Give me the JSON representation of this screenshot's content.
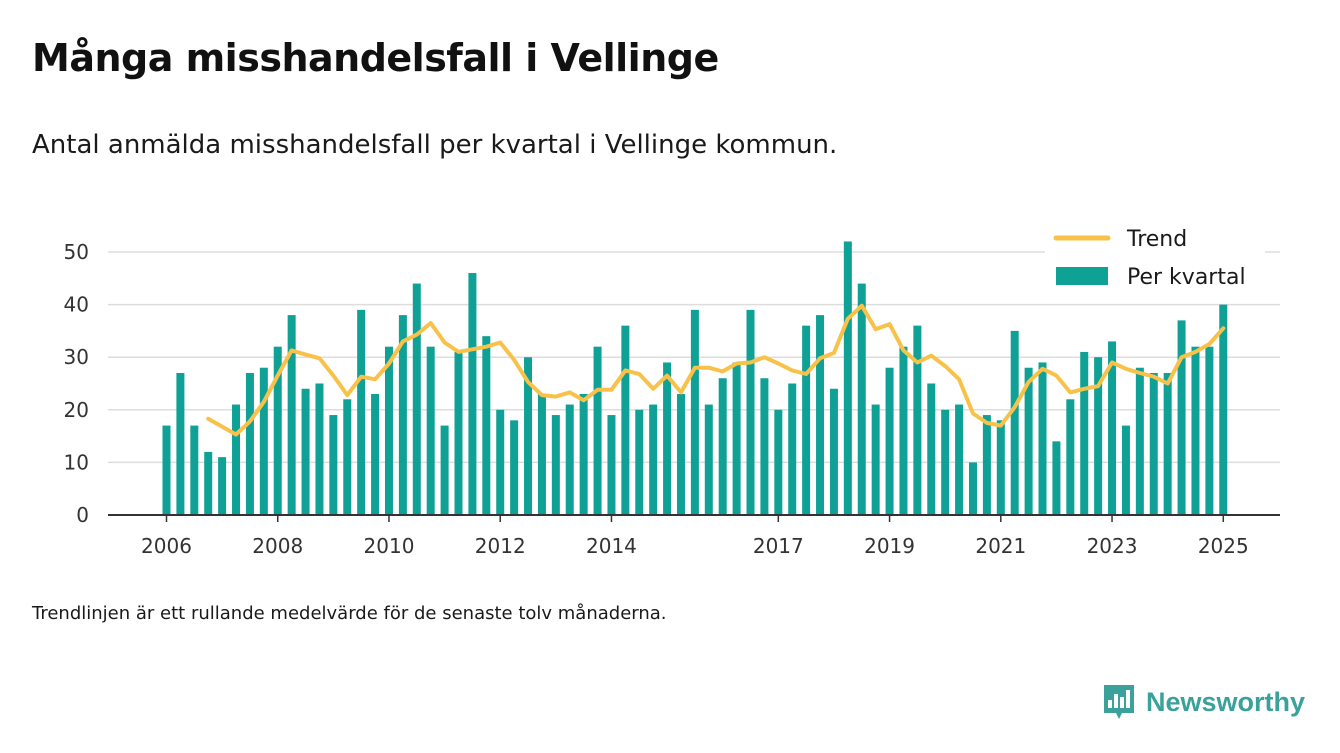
{
  "title": "Många misshandelsfall i Vellinge",
  "subtitle": "Antal anmälda misshandelsfall per kvartal i Vellinge kommun.",
  "footnote": "Trendlinjen är ett rullande medelvärde för de senaste tolv månaderna.",
  "brand": {
    "name": "Newsworthy",
    "icon": "newsworthy-logo-icon"
  },
  "colors": {
    "bars": "#0fa195",
    "trend": "#f8c24a",
    "grid": "#dddddd",
    "axis": "#333333",
    "brand": "#3aa19b"
  },
  "chart_data": {
    "type": "bar",
    "x_start": "2006 Q1",
    "xlabel": "",
    "ylabel": "",
    "ylim": [
      0,
      50
    ],
    "yticks": [
      0,
      10,
      20,
      30,
      40,
      50
    ],
    "xticks": [
      "2006",
      "2008",
      "2010",
      "2012",
      "2014",
      "2017",
      "2019",
      "2021",
      "2023",
      "2025"
    ],
    "grid": true,
    "legend_position": "top-right",
    "series": [
      {
        "name": "Per kvartal",
        "type": "bar",
        "values": [
          17,
          27,
          17,
          12,
          11,
          21,
          27,
          28,
          32,
          38,
          24,
          25,
          19,
          22,
          39,
          23,
          32,
          38,
          44,
          32,
          17,
          31,
          46,
          34,
          20,
          18,
          30,
          23,
          19,
          21,
          23,
          32,
          19,
          36,
          20,
          21,
          29,
          23,
          39,
          21,
          26,
          29,
          39,
          26,
          20,
          25,
          36,
          38,
          24,
          52,
          44,
          21,
          28,
          32,
          36,
          25,
          20,
          21,
          10,
          19,
          18,
          35,
          28,
          29,
          14,
          22,
          31,
          30,
          33,
          17,
          28,
          27,
          27,
          37,
          32,
          32,
          40
        ]
      },
      {
        "name": "Trend",
        "type": "line",
        "values": [
          null,
          null,
          null,
          18.3,
          16.8,
          15.3,
          17.8,
          21.5,
          26.5,
          31.3,
          30.5,
          29.8,
          26.5,
          22.8,
          26.3,
          25.8,
          28.8,
          33.0,
          34.3,
          36.5,
          32.8,
          31.0,
          31.5,
          32.0,
          32.8,
          29.5,
          25.3,
          22.8,
          22.5,
          23.3,
          21.8,
          23.8,
          23.8,
          27.5,
          26.8,
          24.0,
          26.5,
          23.3,
          28.0,
          28.0,
          27.3,
          28.8,
          29.0,
          30.0,
          28.8,
          27.5,
          26.8,
          29.8,
          30.8,
          37.3,
          39.8,
          35.3,
          36.3,
          31.3,
          29.0,
          30.3,
          28.3,
          25.8,
          19.3,
          17.5,
          17.0,
          20.5,
          25.3,
          27.8,
          26.5,
          23.3,
          24.0,
          24.5,
          29.0,
          27.8,
          27.0,
          26.3,
          25.0,
          30.0,
          31.0,
          32.5,
          35.5
        ]
      }
    ]
  }
}
